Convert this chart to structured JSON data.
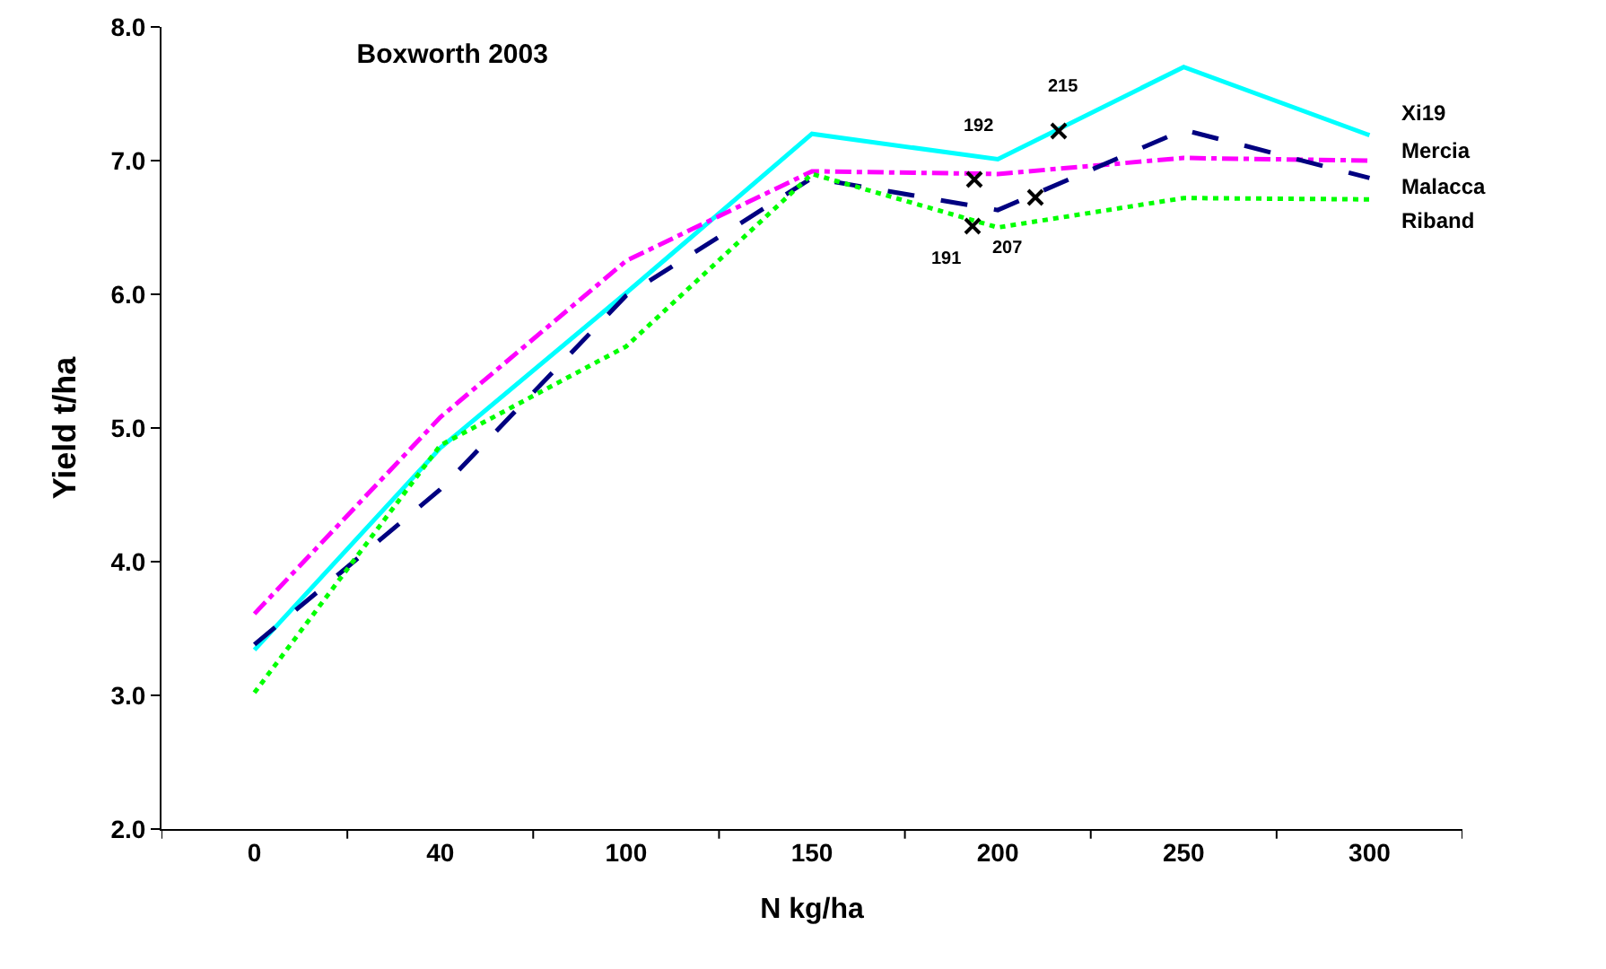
{
  "chart_data": {
    "type": "line",
    "title": "Boxworth 2003",
    "xlabel": "N kg/ha",
    "ylabel": "Yield t/ha",
    "categories": [
      "0",
      "40",
      "100",
      "150",
      "200",
      "250",
      "300"
    ],
    "series": [
      {
        "name": "Xi19",
        "color": "#00ffff",
        "line_style": "solid",
        "values": [
          3.34,
          4.85,
          6.01,
          7.2,
          7.01,
          7.7,
          7.19
        ]
      },
      {
        "name": "Mercia",
        "color": "#ff00ff",
        "line_style": "dashdot",
        "values": [
          3.61,
          5.08,
          6.25,
          6.92,
          6.9,
          7.02,
          7.0
        ]
      },
      {
        "name": "Malacca",
        "color": "#000080",
        "line_style": "dashed",
        "values": [
          3.38,
          4.54,
          5.99,
          6.87,
          6.63,
          7.23,
          6.87
        ]
      },
      {
        "name": "Riband",
        "color": "#00ff00",
        "line_style": "dotted",
        "values": [
          3.02,
          4.87,
          5.61,
          6.9,
          6.5,
          6.72,
          6.71
        ]
      }
    ],
    "annotations": [
      "192",
      "215",
      "191",
      "207"
    ],
    "ylim": [
      2,
      8
    ],
    "yticks": [
      {
        "value": 2,
        "label": "2.0"
      },
      {
        "value": 3,
        "label": "3.0"
      },
      {
        "value": 4,
        "label": "4.0"
      },
      {
        "value": 5,
        "label": "5.0"
      },
      {
        "value": 6,
        "label": "6.0"
      },
      {
        "value": 7,
        "label": "7.0"
      },
      {
        "value": 8,
        "label": "8.0"
      }
    ],
    "grid": false
  }
}
